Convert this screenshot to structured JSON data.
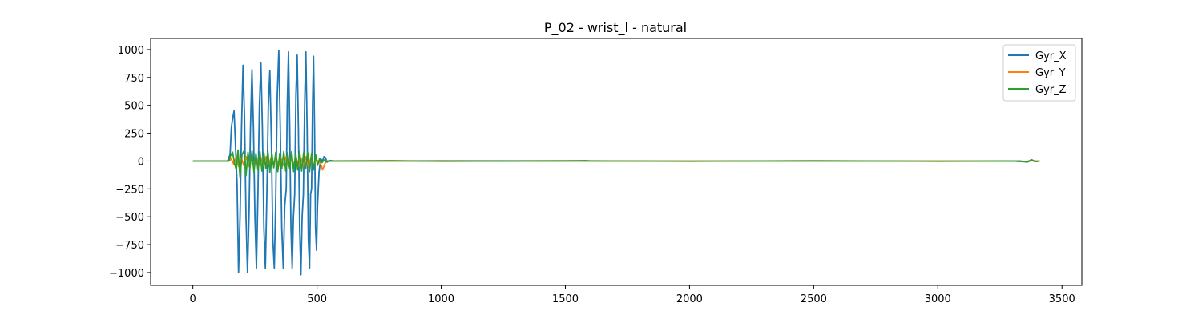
{
  "chart_data": {
    "type": "line",
    "title": "P_02 - wrist_l - natural",
    "xlabel": "",
    "ylabel": "",
    "xlim": [
      -170,
      3580
    ],
    "ylim": [
      -1115,
      1100
    ],
    "xticks": [
      0,
      500,
      1000,
      1500,
      2000,
      2500,
      3000,
      3500
    ],
    "xtick_labels": [
      "0",
      "500",
      "1000",
      "1500",
      "2000",
      "2500",
      "3000",
      "3500"
    ],
    "yticks": [
      1000,
      750,
      500,
      250,
      0,
      -250,
      -500,
      -750,
      -1000
    ],
    "ytick_labels": [
      "1000",
      "750",
      "500",
      "250",
      "0",
      "−250",
      "−500",
      "−750",
      "−1000"
    ],
    "grid": false,
    "legend_position": "upper right",
    "series": [
      {
        "name": "Gyr_X",
        "color": "#1f77b4",
        "points": [
          [
            0,
            0
          ],
          [
            140,
            0
          ],
          [
            150,
            60
          ],
          [
            155,
            300
          ],
          [
            160,
            380
          ],
          [
            166,
            450
          ],
          [
            172,
            120
          ],
          [
            178,
            -200
          ],
          [
            184,
            -1000
          ],
          [
            190,
            -500
          ],
          [
            196,
            300
          ],
          [
            202,
            860
          ],
          [
            208,
            400
          ],
          [
            214,
            -500
          ],
          [
            220,
            -1000
          ],
          [
            226,
            -500
          ],
          [
            232,
            300
          ],
          [
            238,
            820
          ],
          [
            244,
            300
          ],
          [
            250,
            -500
          ],
          [
            256,
            -960
          ],
          [
            262,
            -300
          ],
          [
            268,
            500
          ],
          [
            274,
            880
          ],
          [
            280,
            300
          ],
          [
            286,
            -600
          ],
          [
            292,
            -960
          ],
          [
            298,
            -300
          ],
          [
            304,
            500
          ],
          [
            310,
            810
          ],
          [
            316,
            200
          ],
          [
            322,
            -700
          ],
          [
            328,
            -960
          ],
          [
            334,
            -300
          ],
          [
            340,
            600
          ],
          [
            346,
            990
          ],
          [
            352,
            300
          ],
          [
            358,
            -600
          ],
          [
            364,
            -960
          ],
          [
            370,
            -400
          ],
          [
            376,
            -250
          ],
          [
            380,
            500
          ],
          [
            385,
            980
          ],
          [
            390,
            300
          ],
          [
            395,
            -600
          ],
          [
            400,
            -960
          ],
          [
            405,
            -500
          ],
          [
            410,
            -300
          ],
          [
            415,
            600
          ],
          [
            420,
            950
          ],
          [
            425,
            300
          ],
          [
            430,
            -600
          ],
          [
            435,
            -1020
          ],
          [
            440,
            -500
          ],
          [
            445,
            -300
          ],
          [
            450,
            500
          ],
          [
            455,
            980
          ],
          [
            460,
            300
          ],
          [
            465,
            -700
          ],
          [
            470,
            -960
          ],
          [
            474,
            -300
          ],
          [
            478,
            -250
          ],
          [
            482,
            500
          ],
          [
            486,
            940
          ],
          [
            490,
            300
          ],
          [
            494,
            -600
          ],
          [
            498,
            -800
          ],
          [
            502,
            -400
          ],
          [
            508,
            -100
          ],
          [
            515,
            20
          ],
          [
            522,
            0
          ],
          [
            528,
            40
          ],
          [
            534,
            30
          ],
          [
            540,
            -10
          ],
          [
            550,
            5
          ],
          [
            570,
            0
          ],
          [
            800,
            0
          ],
          [
            1000,
            2
          ],
          [
            1500,
            0
          ],
          [
            1580,
            3
          ],
          [
            1600,
            0
          ],
          [
            2000,
            0
          ],
          [
            2500,
            0
          ],
          [
            3000,
            0
          ],
          [
            3330,
            0
          ],
          [
            3350,
            -5
          ],
          [
            3360,
            -10
          ],
          [
            3370,
            0
          ],
          [
            3378,
            12
          ],
          [
            3384,
            5
          ],
          [
            3390,
            -5
          ],
          [
            3400,
            0
          ],
          [
            3410,
            0
          ]
        ]
      },
      {
        "name": "Gyr_Y",
        "color": "#ff7f0e",
        "points": [
          [
            0,
            0
          ],
          [
            145,
            0
          ],
          [
            155,
            20
          ],
          [
            165,
            -30
          ],
          [
            175,
            40
          ],
          [
            185,
            -50
          ],
          [
            195,
            30
          ],
          [
            205,
            -40
          ],
          [
            215,
            40
          ],
          [
            225,
            -50
          ],
          [
            235,
            30
          ],
          [
            245,
            -40
          ],
          [
            255,
            40
          ],
          [
            265,
            -50
          ],
          [
            275,
            30
          ],
          [
            285,
            -40
          ],
          [
            295,
            40
          ],
          [
            305,
            -50
          ],
          [
            315,
            30
          ],
          [
            325,
            -40
          ],
          [
            335,
            40
          ],
          [
            345,
            -50
          ],
          [
            355,
            30
          ],
          [
            365,
            -40
          ],
          [
            375,
            40
          ],
          [
            385,
            -50
          ],
          [
            395,
            30
          ],
          [
            405,
            -40
          ],
          [
            415,
            40
          ],
          [
            425,
            -50
          ],
          [
            435,
            30
          ],
          [
            445,
            -40
          ],
          [
            455,
            40
          ],
          [
            465,
            -50
          ],
          [
            475,
            30
          ],
          [
            485,
            -40
          ],
          [
            495,
            10
          ],
          [
            505,
            0
          ],
          [
            512,
            -20
          ],
          [
            518,
            -45
          ],
          [
            522,
            -80
          ],
          [
            526,
            -60
          ],
          [
            532,
            -20
          ],
          [
            540,
            0
          ],
          [
            600,
            0
          ],
          [
            3300,
            0
          ],
          [
            3360,
            -5
          ],
          [
            3375,
            10
          ],
          [
            3385,
            0
          ],
          [
            3410,
            0
          ]
        ]
      },
      {
        "name": "Gyr_Z",
        "color": "#2ca02c",
        "points": [
          [
            0,
            0
          ],
          [
            145,
            0
          ],
          [
            152,
            50
          ],
          [
            160,
            80
          ],
          [
            168,
            -20
          ],
          [
            175,
            -80
          ],
          [
            182,
            100
          ],
          [
            190,
            -150
          ],
          [
            198,
            60
          ],
          [
            206,
            90
          ],
          [
            214,
            -130
          ],
          [
            222,
            80
          ],
          [
            230,
            -60
          ],
          [
            238,
            90
          ],
          [
            246,
            -100
          ],
          [
            254,
            70
          ],
          [
            262,
            -80
          ],
          [
            270,
            85
          ],
          [
            278,
            -90
          ],
          [
            286,
            75
          ],
          [
            294,
            -70
          ],
          [
            302,
            90
          ],
          [
            310,
            -100
          ],
          [
            318,
            70
          ],
          [
            326,
            -60
          ],
          [
            334,
            80
          ],
          [
            342,
            -95
          ],
          [
            350,
            70
          ],
          [
            358,
            -70
          ],
          [
            366,
            85
          ],
          [
            374,
            -90
          ],
          [
            382,
            75
          ],
          [
            390,
            -70
          ],
          [
            398,
            85
          ],
          [
            406,
            -95
          ],
          [
            414,
            70
          ],
          [
            422,
            -80
          ],
          [
            430,
            85
          ],
          [
            438,
            -90
          ],
          [
            446,
            75
          ],
          [
            454,
            -70
          ],
          [
            462,
            80
          ],
          [
            470,
            -95
          ],
          [
            478,
            70
          ],
          [
            486,
            -80
          ],
          [
            494,
            60
          ],
          [
            502,
            -40
          ],
          [
            510,
            20
          ],
          [
            520,
            -15
          ],
          [
            528,
            10
          ],
          [
            536,
            -5
          ],
          [
            545,
            0
          ],
          [
            800,
            3
          ],
          [
            1000,
            -2
          ],
          [
            1500,
            2
          ],
          [
            2000,
            -2
          ],
          [
            2500,
            2
          ],
          [
            3000,
            -2
          ],
          [
            3300,
            0
          ],
          [
            3340,
            -5
          ],
          [
            3355,
            -8
          ],
          [
            3365,
            -3
          ],
          [
            3378,
            8
          ],
          [
            3385,
            3
          ],
          [
            3395,
            -5
          ],
          [
            3410,
            0
          ]
        ]
      }
    ]
  }
}
